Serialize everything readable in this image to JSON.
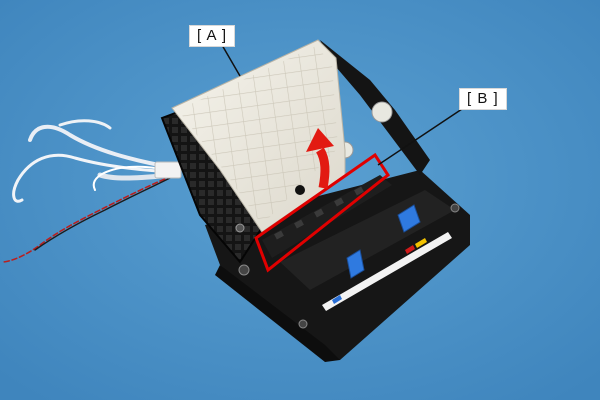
{
  "callouts": {
    "a": "[ A ]",
    "b": "[ B ]"
  },
  "colors": {
    "background": "#4d93c8",
    "highlight_box": "#e00000",
    "arrow": "#e21a12",
    "tray": "#efece2",
    "chassis": "#151515"
  },
  "icons": {
    "arrow": "curved-up-arrow-icon"
  }
}
